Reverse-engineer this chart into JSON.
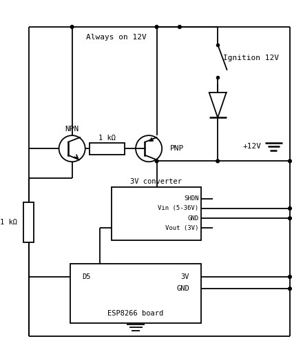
{
  "bg_color": "#ffffff",
  "line_color": "#000000",
  "figsize": [
    4.4,
    5.2
  ],
  "dpi": 100,
  "labels": {
    "always_on": "Always on 12V",
    "ignition": "Ignition 12V",
    "plus12v": "+12V",
    "npn": "NPN",
    "pnp": "PNP",
    "res1k_top": "1 kΩ",
    "res1k_left": "1 kΩ",
    "converter": "3V converter",
    "shdn": "SHDN",
    "vin": "Vin (5-36V)",
    "gnd_conv": "GND",
    "vout": "Vout (3V)",
    "d5": "D5",
    "v3": "3V",
    "gnd_esp": "GND",
    "esp": "ESP8266 board"
  }
}
